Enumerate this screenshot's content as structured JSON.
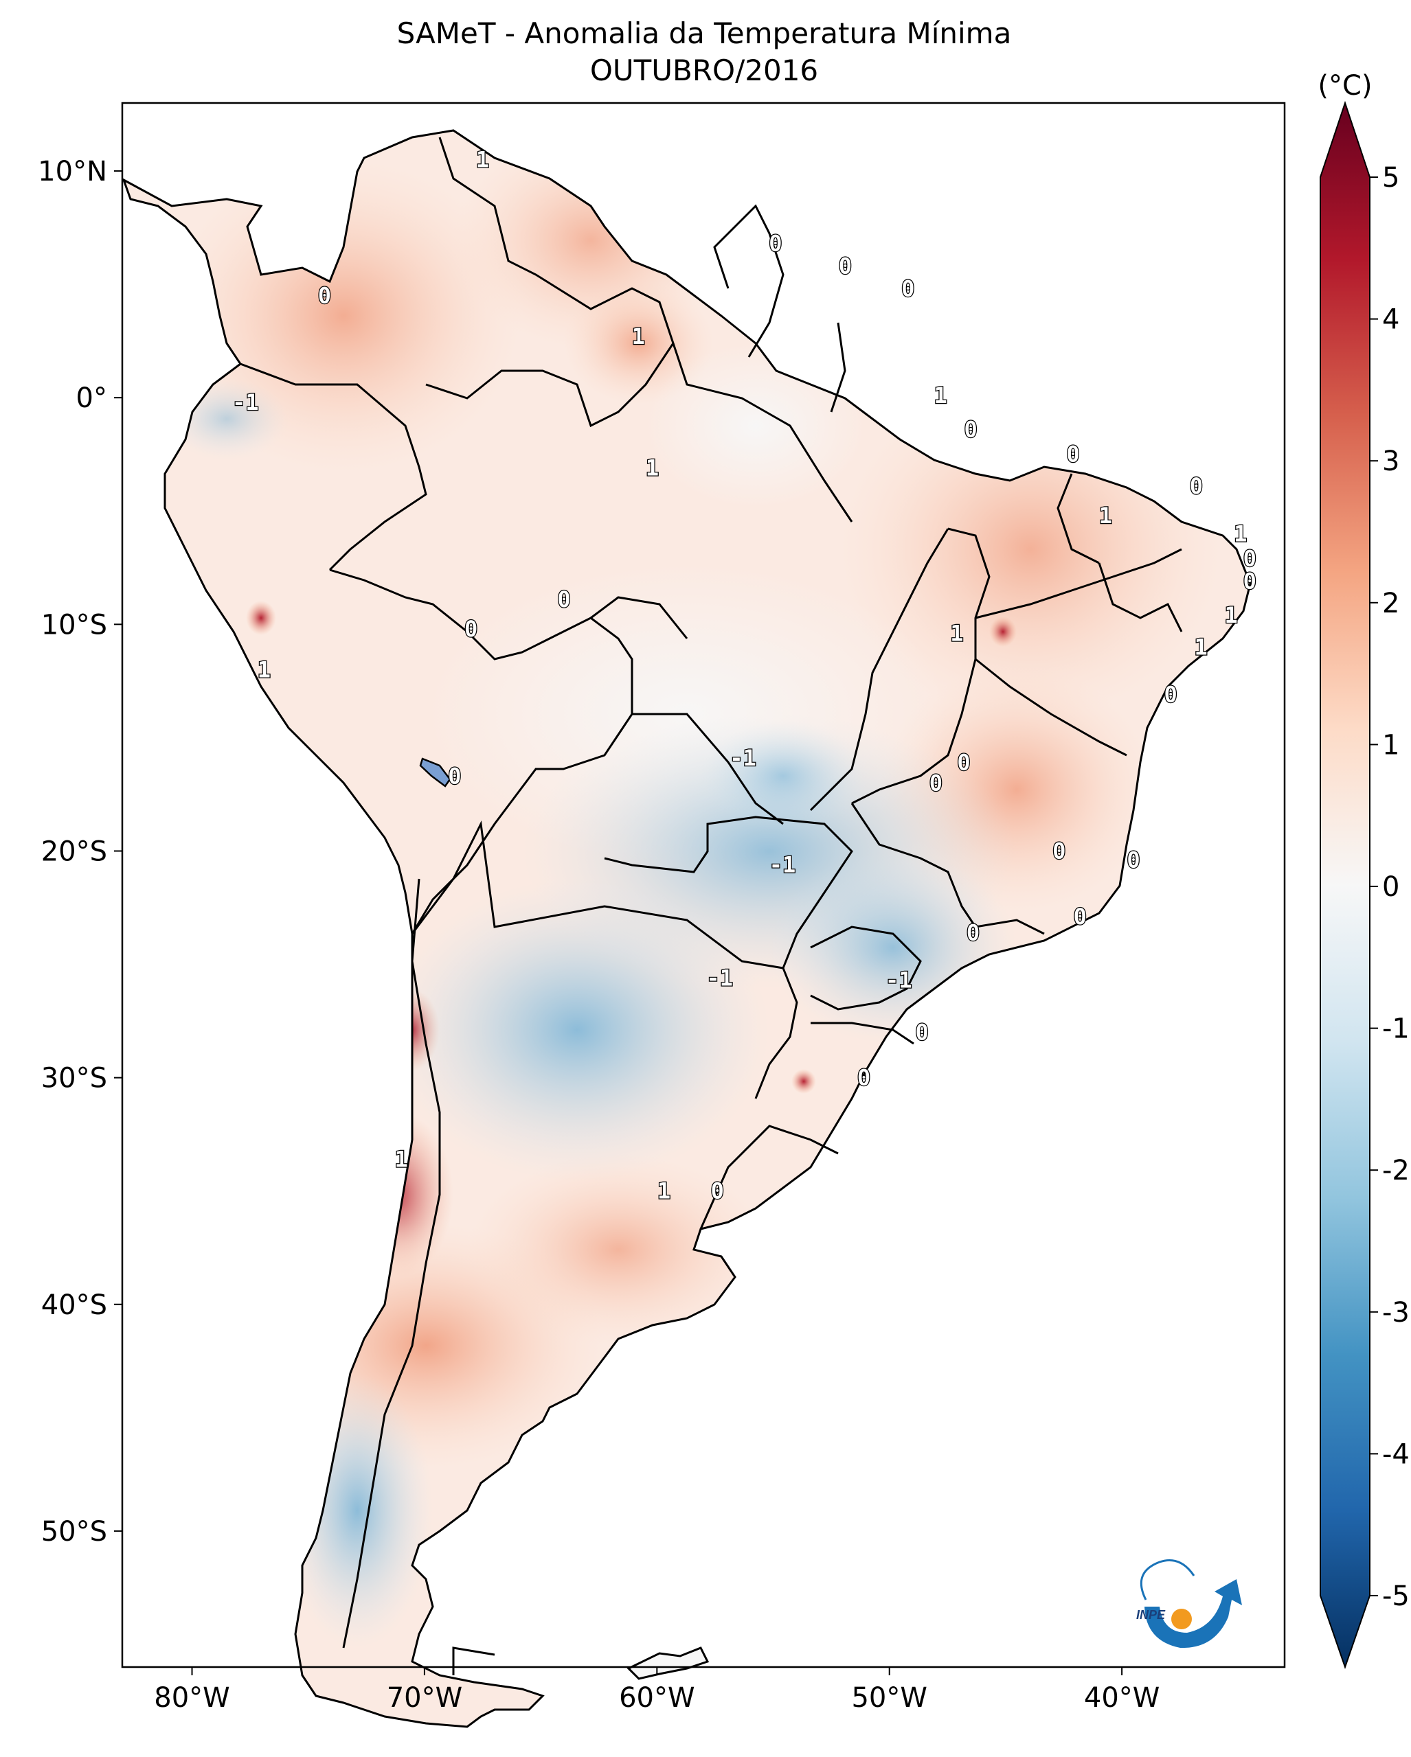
{
  "title": "SAMeT - Anomalia da Temperatura Mínima",
  "subtitle": "OUTUBRO/2016",
  "colorbar": {
    "unit": "(°C)",
    "min": -5,
    "max": 5,
    "tick_labels": [
      "5",
      "4",
      "3",
      "2",
      "1",
      "0",
      "-1",
      "-2",
      "-3",
      "-4",
      "-5"
    ],
    "colors": [
      "#053061",
      "#2166ac",
      "#4393c3",
      "#92c5de",
      "#d1e5f0",
      "#f7f7f7",
      "#fddbc7",
      "#f4a582",
      "#d6604d",
      "#b2182b",
      "#67001f"
    ]
  },
  "axes": {
    "lon_range": [
      -83,
      -33
    ],
    "lat_range": [
      -56,
      13
    ],
    "x_tick_labels": [
      {
        "lon": -80,
        "label": "80°W"
      },
      {
        "lon": -70,
        "label": "70°W"
      },
      {
        "lon": -60,
        "label": "60°W"
      },
      {
        "lon": -50,
        "label": "50°W"
      },
      {
        "lon": -40,
        "label": "40°W"
      }
    ],
    "y_tick_labels": [
      {
        "lat": 10,
        "label": "10°N"
      },
      {
        "lat": 0,
        "label": "0°"
      },
      {
        "lat": -10,
        "label": "10°S"
      },
      {
        "lat": -20,
        "label": "20°S"
      },
      {
        "lat": -30,
        "label": "30°S"
      },
      {
        "lat": -40,
        "label": "40°S"
      },
      {
        "lat": -50,
        "label": "50°S"
      }
    ]
  },
  "contour_labels": [
    {
      "lon": -67.5,
      "lat": 10.5,
      "label": "1"
    },
    {
      "lon": -74.3,
      "lat": 4.5,
      "label": "0"
    },
    {
      "lon": -54.9,
      "lat": 6.8,
      "label": "0"
    },
    {
      "lon": -51.9,
      "lat": 5.8,
      "label": "0"
    },
    {
      "lon": -49.2,
      "lat": 4.8,
      "label": "0"
    },
    {
      "lon": -60.8,
      "lat": 2.7,
      "label": "1"
    },
    {
      "lon": -47.8,
      "lat": 0.1,
      "label": "1"
    },
    {
      "lon": -77.7,
      "lat": -0.2,
      "label": "-1"
    },
    {
      "lon": -46.5,
      "lat": -1.4,
      "label": "0"
    },
    {
      "lon": -60.2,
      "lat": -3.1,
      "label": "1"
    },
    {
      "lon": -42.1,
      "lat": -2.5,
      "label": "0"
    },
    {
      "lon": -36.8,
      "lat": -3.9,
      "label": "0"
    },
    {
      "lon": -40.7,
      "lat": -5.2,
      "label": "1"
    },
    {
      "lon": -34.9,
      "lat": -6.0,
      "label": "1"
    },
    {
      "lon": -34.5,
      "lat": -7.1,
      "label": "0"
    },
    {
      "lon": -34.5,
      "lat": -8.1,
      "label": "0"
    },
    {
      "lon": -64.0,
      "lat": -8.9,
      "label": "0"
    },
    {
      "lon": -35.3,
      "lat": -9.6,
      "label": "1"
    },
    {
      "lon": -68.0,
      "lat": -10.2,
      "label": "0"
    },
    {
      "lon": -47.1,
      "lat": -10.4,
      "label": "1"
    },
    {
      "lon": -36.6,
      "lat": -11.0,
      "label": "1"
    },
    {
      "lon": -76.9,
      "lat": -12.0,
      "label": "1"
    },
    {
      "lon": -37.9,
      "lat": -13.1,
      "label": "0"
    },
    {
      "lon": -56.3,
      "lat": -15.9,
      "label": "-1"
    },
    {
      "lon": -46.8,
      "lat": -16.1,
      "label": "0"
    },
    {
      "lon": -68.7,
      "lat": -16.7,
      "label": "0"
    },
    {
      "lon": -48.0,
      "lat": -17.0,
      "label": "0"
    },
    {
      "lon": -42.7,
      "lat": -20.0,
      "label": "0"
    },
    {
      "lon": -39.5,
      "lat": -20.4,
      "label": "0"
    },
    {
      "lon": -54.6,
      "lat": -20.6,
      "label": "-1"
    },
    {
      "lon": -41.8,
      "lat": -22.9,
      "label": "0"
    },
    {
      "lon": -46.4,
      "lat": -23.6,
      "label": "0"
    },
    {
      "lon": -57.3,
      "lat": -25.6,
      "label": "-1"
    },
    {
      "lon": -49.6,
      "lat": -25.7,
      "label": "-1"
    },
    {
      "lon": -48.6,
      "lat": -28.0,
      "label": "0"
    },
    {
      "lon": -51.1,
      "lat": -30.0,
      "label": "0"
    },
    {
      "lon": -71.0,
      "lat": -33.6,
      "label": "1"
    },
    {
      "lon": -59.7,
      "lat": -35.0,
      "label": "1"
    },
    {
      "lon": -57.4,
      "lat": -35.0,
      "label": "0"
    }
  ],
  "logo": {
    "text": "INPE"
  }
}
